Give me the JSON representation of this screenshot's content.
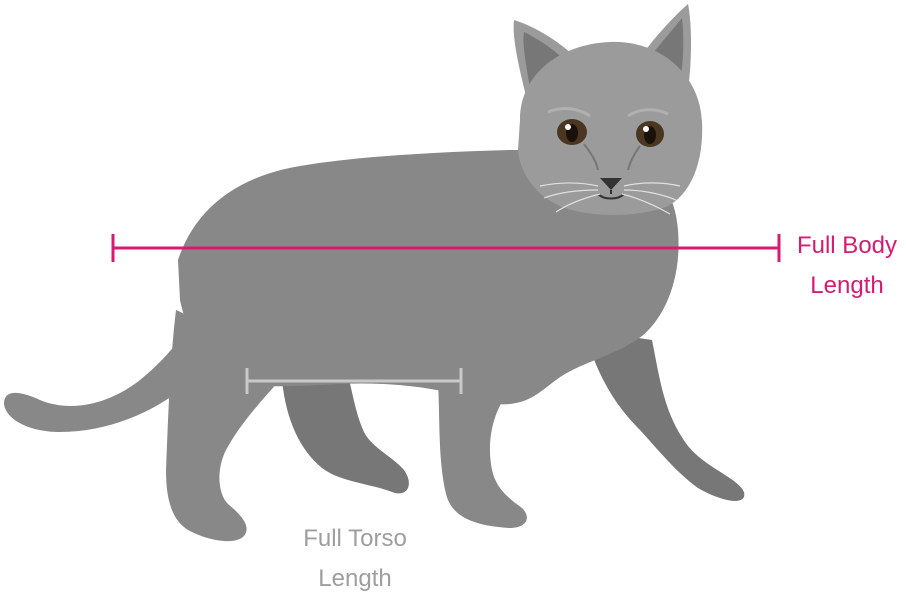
{
  "labels": {
    "full_body": {
      "line1": "Full Body",
      "line2": "Length",
      "color": "#d81b71"
    },
    "full_torso": {
      "line1": "Full Torso",
      "line2": "Length",
      "color": "#c8c8c8"
    }
  },
  "colors": {
    "body": "#888888",
    "head": "#9b9b9b",
    "far_legs": "#777777",
    "ear_inner": "#777777",
    "eye_iris": "#4b3622",
    "nose": "#333333"
  }
}
